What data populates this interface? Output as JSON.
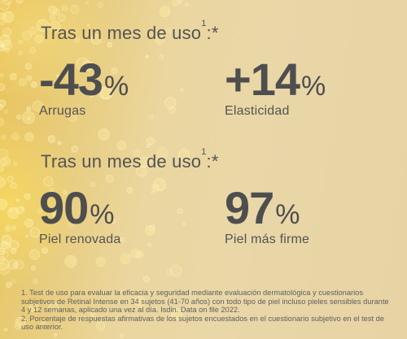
{
  "section1": {
    "heading": "Tras un mes de uso",
    "heading_sup": "1",
    "heading_suffix": ":*",
    "stats": [
      {
        "value": "-43",
        "unit": "%",
        "label": "Arrugas"
      },
      {
        "value": "+14",
        "unit": "%",
        "label": "Elasticidad"
      }
    ]
  },
  "section2": {
    "heading": "Tras un mes de uso",
    "heading_sup": "1",
    "heading_suffix": ":*",
    "stats": [
      {
        "value": "90",
        "unit": "%",
        "label": "Piel renovada"
      },
      {
        "value": "97",
        "unit": "%",
        "label": "Piel más firme"
      }
    ]
  },
  "footnotes": [
    "1. Test de uso para evaluar la eficacia y seguridad mediante evaluación dermatológica y cuestionarios subjetivos de Retinal Intense en 34 sujetos (41-70 años) con todo tipo de piel incluso pieles sensibles durante 4 y 12 semanas, aplicado una vez al día. Isdin. Data on file 2022.",
    "2. Porcentaje de respuestas afirmativas de los sujetos encuestados en el cuestionario subjetivo en el test de uso anterior."
  ],
  "colors": {
    "text": "#545454",
    "background": "#e8d4a2",
    "glow": "#f0c84a"
  }
}
